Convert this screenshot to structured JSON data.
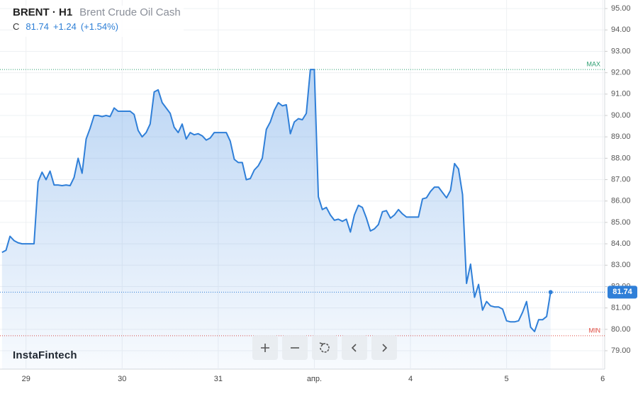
{
  "header": {
    "symbol": "BRENT · H1",
    "name": "Brent Crude Oil Cash",
    "close_label": "C",
    "change": "+1.24",
    "change_pct": "(+1.54%)"
  },
  "brand": "InstaFintech",
  "chart_data": {
    "type": "area",
    "color": "#2f7fd8",
    "last_price": 81.74,
    "max_level": {
      "value": 92.15,
      "label": "MAX"
    },
    "min_level": {
      "value": 79.7,
      "label": "MIN"
    },
    "categories": [
      null,
      null,
      null,
      null,
      null,
      null,
      "29",
      null,
      null,
      null,
      null,
      null,
      null,
      null,
      null,
      null,
      null,
      null,
      null,
      null,
      null,
      null,
      null,
      null,
      null,
      null,
      null,
      null,
      null,
      null,
      "30",
      null,
      null,
      null,
      null,
      null,
      null,
      null,
      null,
      null,
      null,
      null,
      null,
      null,
      null,
      null,
      null,
      null,
      null,
      null,
      null,
      null,
      null,
      null,
      "31",
      null,
      null,
      null,
      null,
      null,
      null,
      null,
      null,
      null,
      null,
      null,
      null,
      null,
      null,
      null,
      null,
      null,
      null,
      null,
      null,
      null,
      null,
      null,
      "апр.",
      null,
      null,
      null,
      null,
      null,
      null,
      null,
      null,
      null,
      null,
      null,
      null,
      null,
      null,
      null,
      null,
      null,
      null,
      null,
      null,
      null,
      null,
      null,
      "4",
      null,
      null,
      null,
      null,
      null,
      null,
      null,
      null,
      null,
      null,
      null,
      null,
      null,
      null,
      null,
      null,
      null,
      null,
      null,
      null,
      null,
      null,
      null,
      "5",
      null,
      null,
      null,
      null,
      null,
      null,
      null,
      null,
      null,
      null,
      null,
      null,
      null,
      null,
      null,
      null,
      null,
      null,
      null,
      null,
      null,
      null,
      null,
      "6"
    ],
    "values": [
      83.6,
      83.7,
      84.35,
      84.15,
      84.05,
      84.0,
      84.0,
      84.0,
      84.0,
      86.9,
      87.35,
      87.0,
      87.4,
      86.75,
      86.75,
      86.72,
      86.75,
      86.72,
      87.1,
      88.0,
      87.3,
      88.9,
      89.4,
      90.0,
      90.0,
      89.95,
      90.0,
      89.95,
      90.35,
      90.2,
      90.2,
      90.2,
      90.2,
      90.05,
      89.3,
      89.0,
      89.2,
      89.6,
      91.1,
      91.2,
      90.6,
      90.35,
      90.1,
      89.45,
      89.2,
      89.6,
      88.9,
      89.2,
      89.1,
      89.15,
      89.05,
      88.85,
      88.95,
      89.2,
      89.2,
      89.2,
      89.2,
      88.8,
      87.95,
      87.8,
      87.8,
      87.0,
      87.05,
      87.45,
      87.65,
      88.0,
      89.35,
      89.7,
      90.25,
      90.6,
      90.45,
      90.5,
      89.15,
      89.7,
      89.85,
      89.8,
      90.1,
      92.15,
      92.15,
      86.2,
      85.6,
      85.7,
      85.35,
      85.1,
      85.15,
      85.05,
      85.15,
      84.55,
      85.35,
      85.8,
      85.7,
      85.2,
      84.6,
      84.7,
      84.9,
      85.5,
      85.55,
      85.2,
      85.35,
      85.6,
      85.4,
      85.25,
      85.25,
      85.25,
      85.25,
      86.1,
      86.15,
      86.45,
      86.65,
      86.65,
      86.4,
      86.15,
      86.5,
      87.75,
      87.5,
      86.3,
      82.15,
      83.05,
      81.5,
      82.1,
      80.9,
      81.3,
      81.1,
      81.05,
      81.05,
      80.95,
      80.4,
      80.35,
      80.35,
      80.4,
      80.8,
      81.3,
      80.1,
      79.9,
      80.45,
      80.45,
      80.6,
      81.74,
      null,
      null,
      null,
      null,
      null,
      null,
      null,
      null,
      null,
      null,
      null,
      null,
      null
    ],
    "ylim": [
      78.14,
      95.4
    ],
    "yticks": [
      {
        "value": 79,
        "label": "79.00"
      },
      {
        "value": 80,
        "label": "80.00"
      },
      {
        "value": 81,
        "label": "81.00"
      },
      {
        "value": 82,
        "label": "82.00"
      },
      {
        "value": 83,
        "label": "83.00"
      },
      {
        "value": 84,
        "label": "84.00"
      },
      {
        "value": 85,
        "label": "85.00"
      },
      {
        "value": 86,
        "label": "86.00"
      },
      {
        "value": 87,
        "label": "87.00"
      },
      {
        "value": 88,
        "label": "88.00"
      },
      {
        "value": 89,
        "label": "89.00"
      },
      {
        "value": 90,
        "label": "90.00"
      },
      {
        "value": 91,
        "label": "91.00"
      },
      {
        "value": 92,
        "label": "92.00"
      },
      {
        "value": 93,
        "label": "93.00"
      },
      {
        "value": 94,
        "label": "94.00"
      },
      {
        "value": 95,
        "label": "95.00"
      }
    ],
    "grid": true
  }
}
